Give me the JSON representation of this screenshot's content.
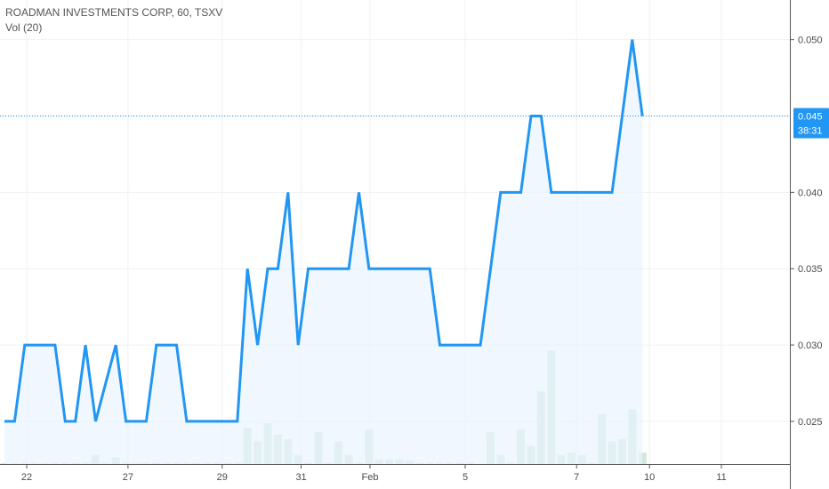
{
  "header": {
    "title": "ROADMAN INVESTMENTS CORP, 60, TSXV",
    "indicator": "Vol (20)"
  },
  "colors": {
    "line": "#2196f3",
    "area": "#eaf4fd",
    "volume": "#cfe8d9",
    "grid": "#eef1f4",
    "badge": "#2196f3"
  },
  "price_badge": {
    "value": "0.045",
    "countdown": "38:31"
  },
  "chart_data": {
    "type": "area",
    "title": "ROADMAN INVESTMENTS CORP, 60, TSXV",
    "xlabel": "",
    "ylabel": "",
    "ylim": [
      0.0222,
      0.0526
    ],
    "y_ticks": [
      "0.025",
      "0.030",
      "0.035",
      "0.040",
      "0.045",
      "0.050"
    ],
    "y_tick_values": [
      0.025,
      0.03,
      0.035,
      0.04,
      0.045,
      0.05
    ],
    "x_ticks": [
      {
        "label": "22",
        "bar": 2.2
      },
      {
        "label": "27",
        "bar": 12.2
      },
      {
        "label": "29",
        "bar": 21.5
      },
      {
        "label": "31",
        "bar": 29.3
      },
      {
        "label": "Feb",
        "bar": 36.1
      },
      {
        "label": "5",
        "bar": 45.5
      },
      {
        "label": "7",
        "bar": 56.5
      },
      {
        "label": "10",
        "bar": 63.7
      },
      {
        "label": "11",
        "bar": 70.8
      }
    ],
    "x_range": [
      0,
      78
    ],
    "grid": true,
    "last_price": 0.045,
    "series": [
      {
        "values": [
          0.025,
          0.025,
          0.03,
          0.03,
          0.03,
          0.03,
          0.025,
          0.025,
          0.03,
          0.025,
          0.0275,
          0.03,
          0.025,
          0.025,
          0.025,
          0.03,
          0.03,
          0.03,
          0.025,
          0.025,
          0.025,
          0.025,
          0.025,
          0.025,
          0.035,
          0.03,
          0.035,
          0.035,
          0.04,
          0.03,
          0.035,
          0.035,
          0.035,
          0.035,
          0.035,
          0.04,
          0.035,
          0.035,
          0.035,
          0.035,
          0.035,
          0.035,
          0.035,
          0.03,
          0.03,
          0.03,
          0.03,
          0.03,
          0.035,
          0.04,
          0.04,
          0.04,
          0.045,
          0.045,
          0.04,
          0.04,
          0.04,
          0.04,
          0.04,
          0.04,
          0.04,
          0.045,
          0.05,
          0.045
        ]
      }
    ],
    "volume": [
      0.2,
      0.2,
      0.3,
      0.3,
      0.3,
      0.3,
      0.3,
      0.3,
      0.3,
      2,
      0.3,
      1.5,
      0.3,
      0.3,
      0.3,
      0.3,
      0.3,
      0.3,
      0.3,
      0.3,
      0.3,
      0.3,
      0.3,
      0.3,
      8,
      5,
      9,
      6.5,
      5.5,
      2,
      0.3,
      7,
      0.3,
      5,
      2,
      0.3,
      7.5,
      1,
      1,
      1,
      0.8,
      0.3,
      0.3,
      0.3,
      0.3,
      0.3,
      0.3,
      0,
      7,
      2,
      0.3,
      7.5,
      4,
      16,
      25,
      2,
      2.5,
      2,
      0.3,
      11,
      5,
      5.5,
      12,
      2.5
    ]
  }
}
